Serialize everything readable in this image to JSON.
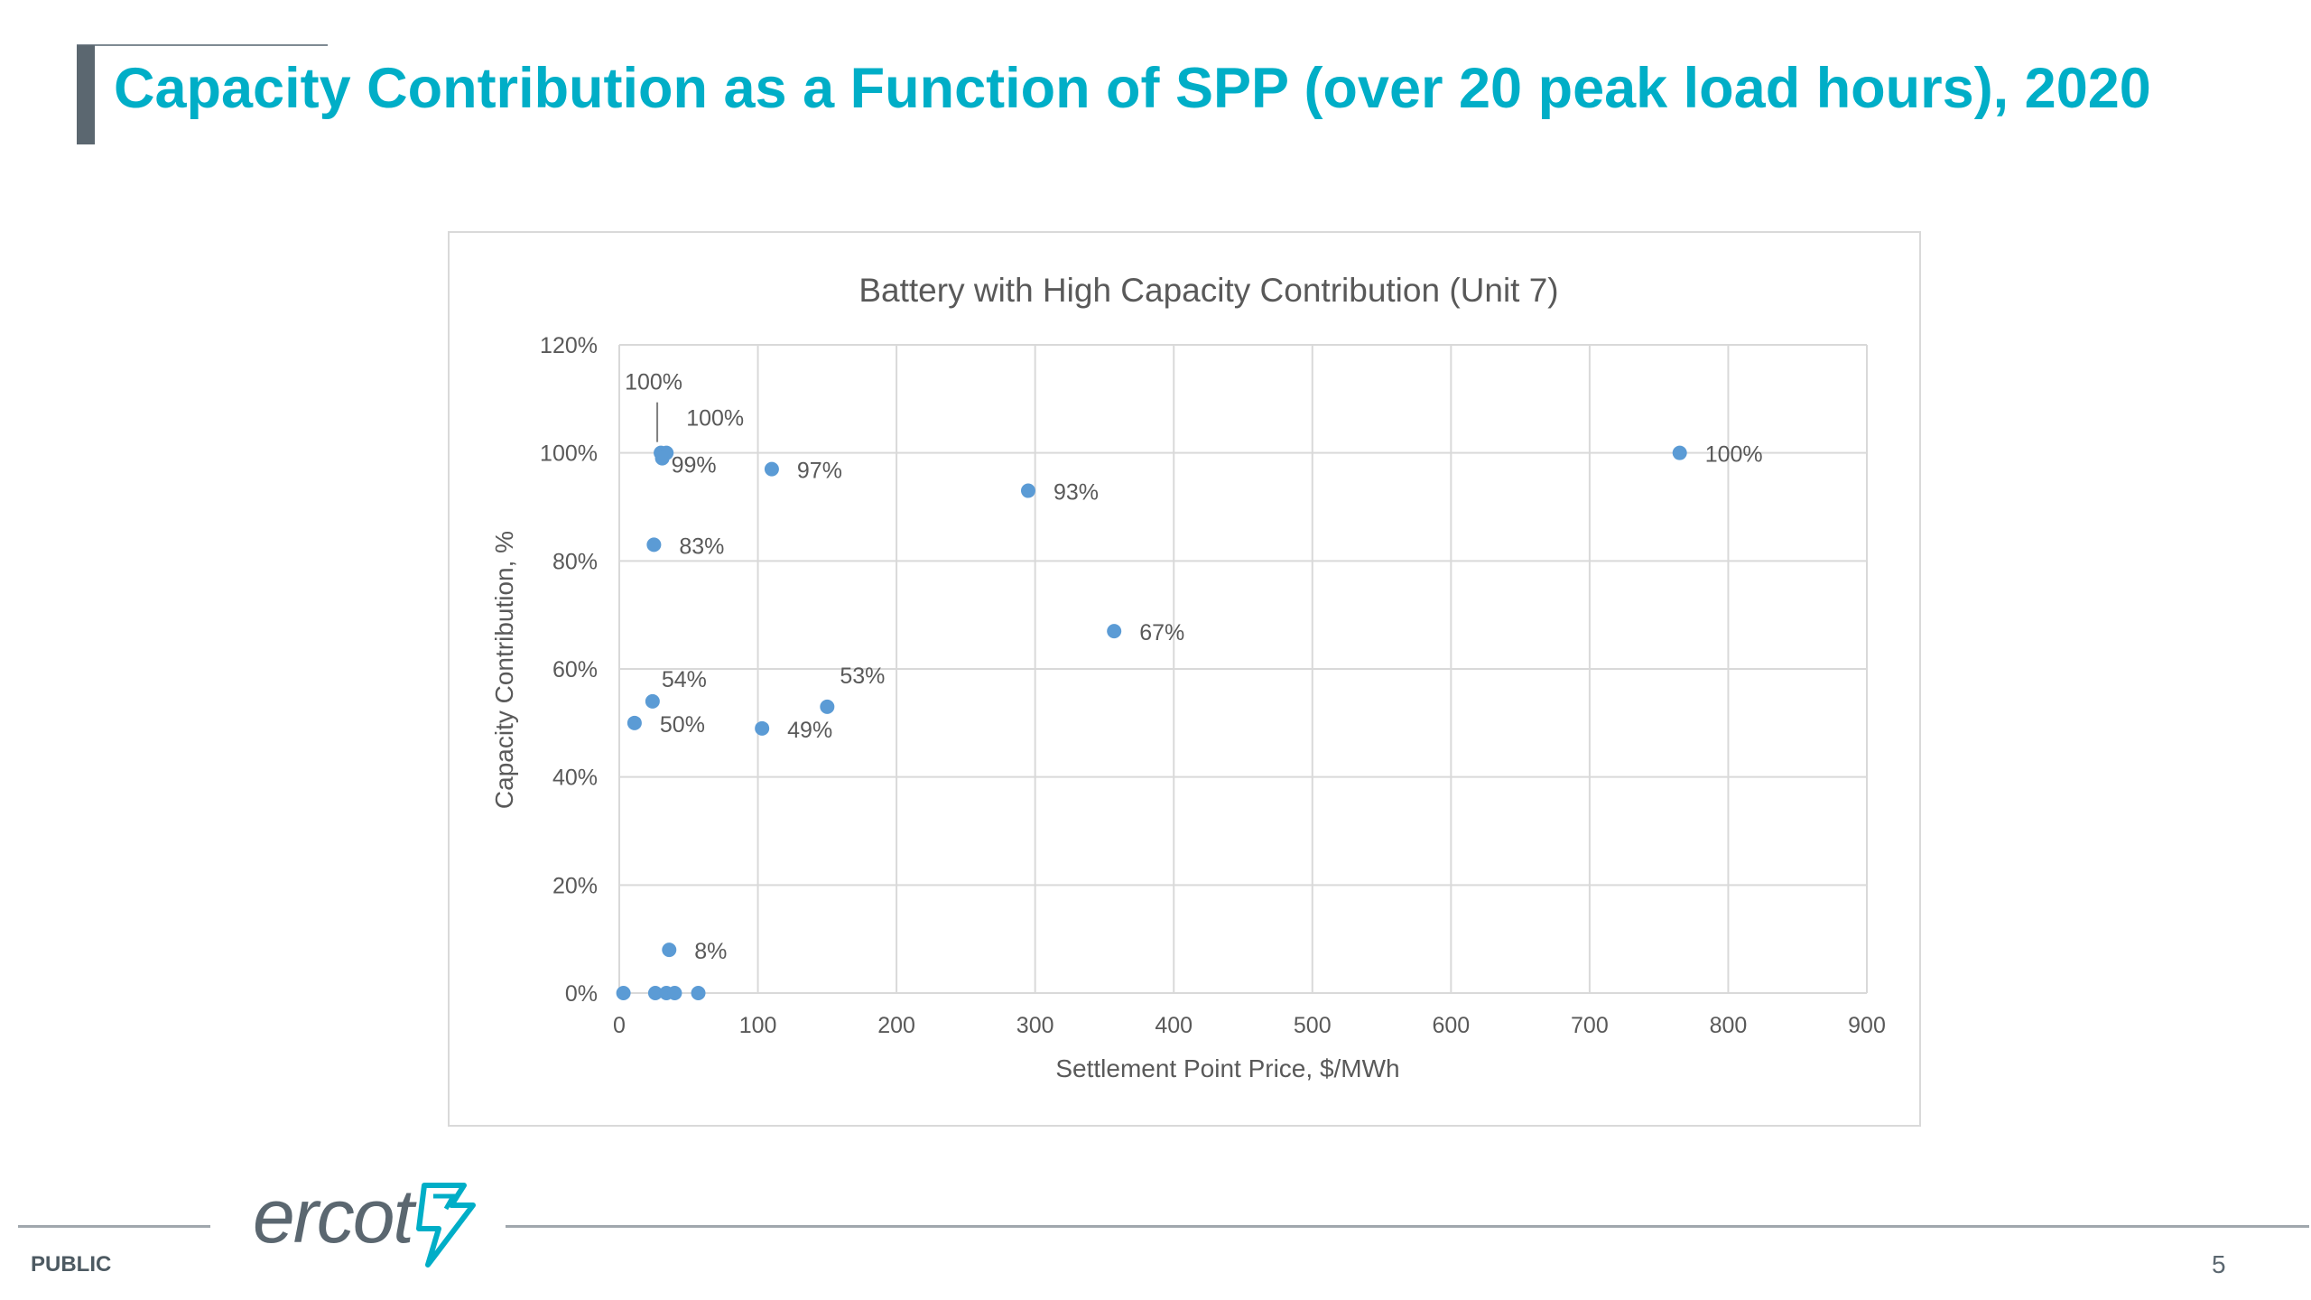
{
  "slide": {
    "title": "Capacity Contribution as a Function of SPP (over 20 peak load hours), 2020",
    "footer_label": "PUBLIC",
    "page_number": "5",
    "logo_text": "ercot",
    "logo_icon": "ercot-lightning-logo-icon",
    "title_color": "#00aec7",
    "footer_color": "#5b6770"
  },
  "chart_data": {
    "type": "scatter",
    "title": "Battery with High Capacity Contribution (Unit 7)",
    "xlabel": "Settlement Point Price, $/MWh",
    "ylabel": "Capacity Contribution, %",
    "xlim": [
      0,
      900
    ],
    "ylim": [
      0,
      120
    ],
    "x_ticks": [
      0,
      100,
      200,
      300,
      400,
      500,
      600,
      700,
      800,
      900
    ],
    "x_tick_labels": [
      "0",
      "100",
      "200",
      "300",
      "400",
      "500",
      "600",
      "700",
      "800",
      "900"
    ],
    "y_ticks": [
      0,
      20,
      40,
      60,
      80,
      100,
      120
    ],
    "y_tick_labels": [
      "0%",
      "20%",
      "40%",
      "60%",
      "80%",
      "100%",
      "120%"
    ],
    "grid": true,
    "legend": "none",
    "marker_color": "#5b9bd5",
    "points": [
      {
        "x": 30,
        "y": 100,
        "label": "100%"
      },
      {
        "x": 34,
        "y": 100,
        "label": "100%"
      },
      {
        "x": 31,
        "y": 99,
        "label": "99%"
      },
      {
        "x": 110,
        "y": 97,
        "label": "97%"
      },
      {
        "x": 295,
        "y": 93,
        "label": "93%"
      },
      {
        "x": 765,
        "y": 100,
        "label": "100%"
      },
      {
        "x": 25,
        "y": 83,
        "label": "83%"
      },
      {
        "x": 357,
        "y": 67,
        "label": "67%"
      },
      {
        "x": 24,
        "y": 54,
        "label": "54%"
      },
      {
        "x": 11,
        "y": 50,
        "label": "50%"
      },
      {
        "x": 103,
        "y": 49,
        "label": "49%"
      },
      {
        "x": 150,
        "y": 53,
        "label": "53%"
      },
      {
        "x": 36,
        "y": 8,
        "label": "8%"
      },
      {
        "x": 3,
        "y": 0,
        "label": ""
      },
      {
        "x": 26,
        "y": 0,
        "label": ""
      },
      {
        "x": 34,
        "y": 0,
        "label": ""
      },
      {
        "x": 40,
        "y": 0,
        "label": ""
      },
      {
        "x": 57,
        "y": 0,
        "label": ""
      }
    ]
  }
}
